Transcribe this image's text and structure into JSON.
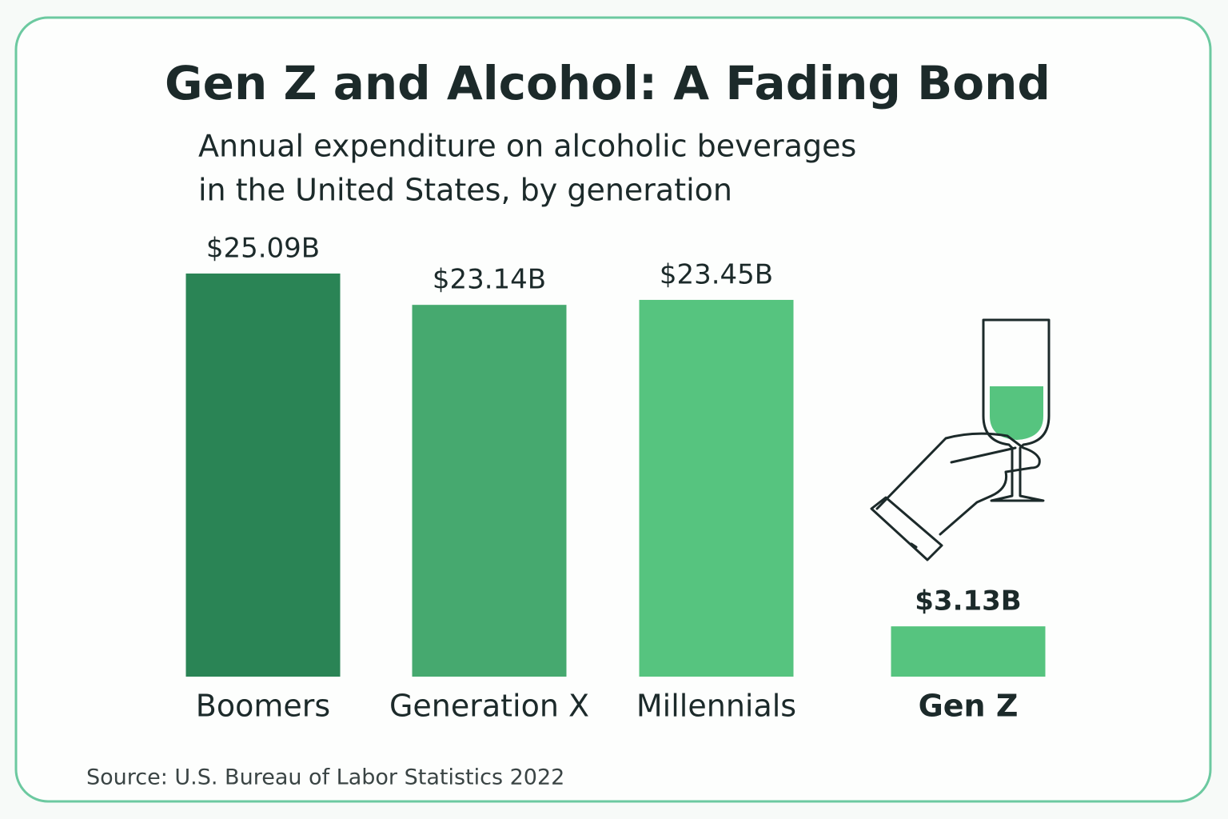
{
  "chart_data": {
    "type": "bar",
    "title": "Gen Z and Alcohol: A Fading Bond",
    "subtitle": [
      "Annual expenditure on alcoholic beverages",
      "in the United States, by generation"
    ],
    "categories": [
      "Boomers",
      "Generation X",
      "Millennials",
      "Gen Z"
    ],
    "values": [
      25.09,
      23.14,
      23.45,
      3.13
    ],
    "value_labels": [
      "$25.09B",
      "$23.14B",
      "$23.45B",
      "$3.13B"
    ],
    "colors": [
      "#2a8455",
      "#46a96f",
      "#56c47f",
      "#56c47f"
    ],
    "source": "Source: U.S. Bureau of Labor Statistics 2022"
  }
}
